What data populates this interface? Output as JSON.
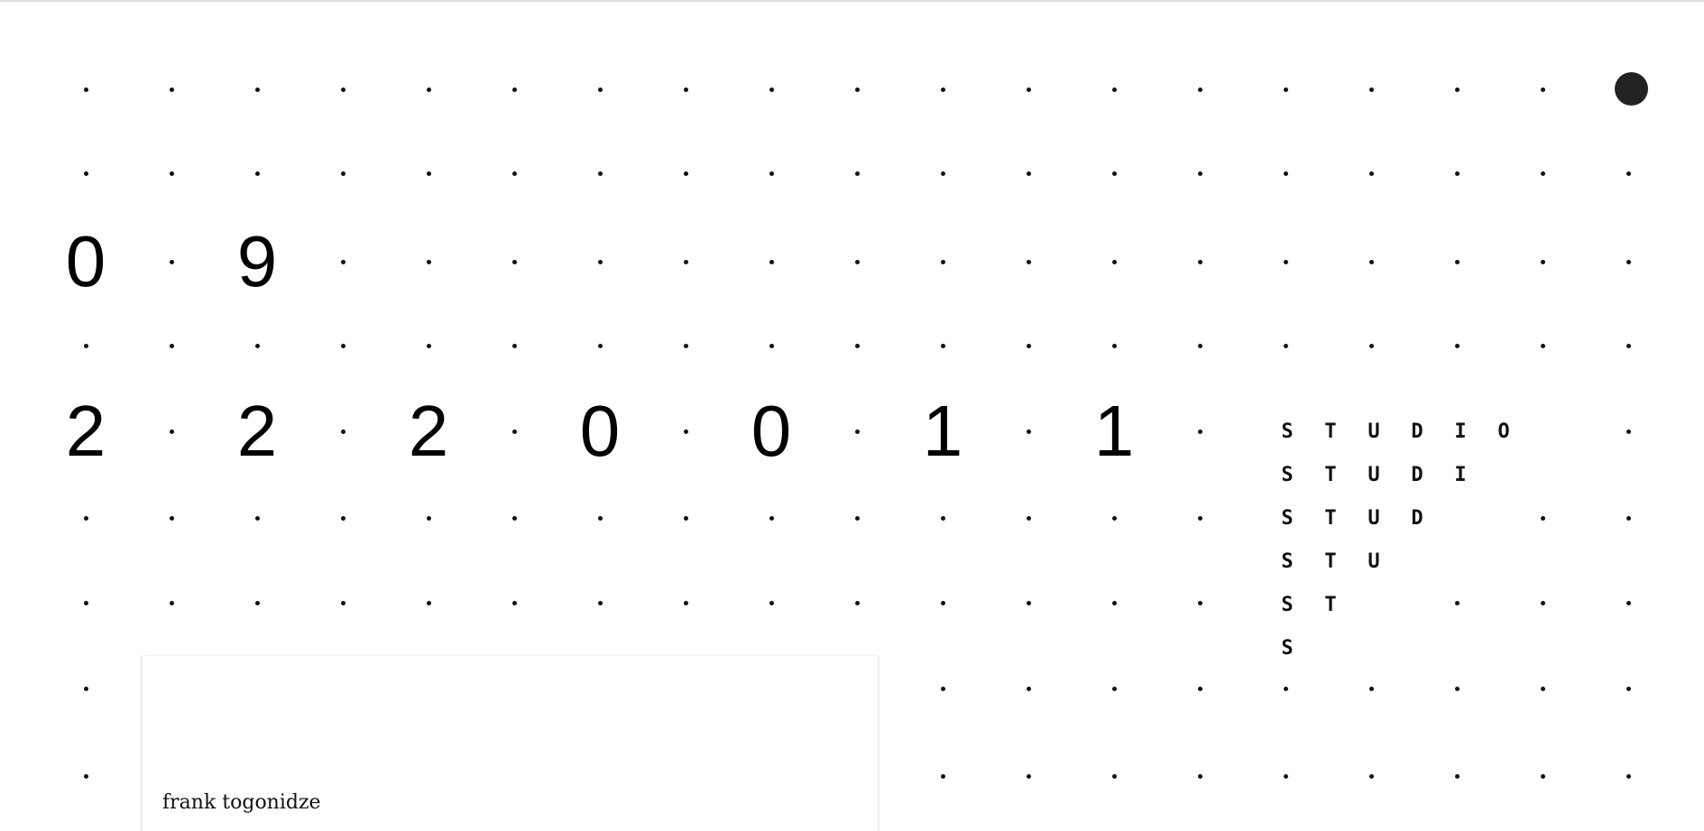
{
  "date_row": [
    "0",
    "9"
  ],
  "year_row": [
    "2",
    "2",
    "2",
    "0",
    "0",
    "1",
    "1"
  ],
  "studio_lines": [
    "STUDIO",
    "STUDI",
    "STUD",
    "STU",
    "ST",
    "S"
  ],
  "panel": {
    "name": "frank togonidze"
  },
  "colors": {
    "background": "#ffffff",
    "dot": "#111111",
    "text": "#000000"
  },
  "indicator_icon": "filled-circle-icon"
}
